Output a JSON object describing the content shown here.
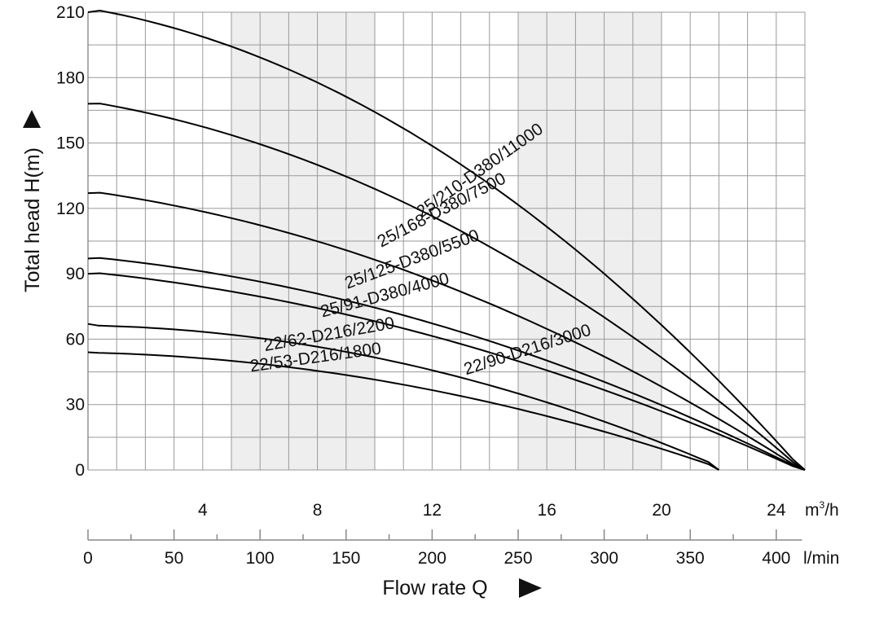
{
  "chart_data": {
    "type": "line",
    "title": "",
    "ylabel": "Total head H(m)",
    "xlabel": "Flow rate Q",
    "x_unit_primary": "m³/h",
    "x_unit_primary_base": "m",
    "x_unit_primary_sup": "3",
    "x_unit_primary_tail": "/h",
    "x_unit_secondary": "l/min",
    "xlim": [
      0,
      25
    ],
    "ylim": [
      0,
      210
    ],
    "yticks": [
      0,
      30,
      60,
      90,
      120,
      150,
      180,
      210
    ],
    "xticks_m3h": [
      4,
      8,
      12,
      16,
      20,
      24
    ],
    "xticks_lmin": [
      0,
      50,
      100,
      150,
      200,
      250,
      300,
      350,
      400
    ],
    "shaded_ranges": [
      [
        5,
        10
      ],
      [
        15,
        20
      ]
    ],
    "series": [
      {
        "name": "25/210-D380/11000",
        "x": [
          0,
          5,
          10,
          15,
          20,
          25
        ],
        "values": [
          210,
          197,
          165,
          120,
          65,
          0
        ]
      },
      {
        "name": "25/168-D380/7500",
        "x": [
          0,
          5,
          10,
          15,
          20,
          25
        ],
        "values": [
          168,
          155,
          130,
          94,
          50,
          0
        ]
      },
      {
        "name": "25/125-D380/5500",
        "x": [
          0,
          5,
          10,
          15,
          20,
          25
        ],
        "values": [
          127,
          117,
          97,
          70,
          37,
          0
        ]
      },
      {
        "name": "25/91-D380/4000",
        "x": [
          0,
          5,
          10,
          15,
          20,
          25
        ],
        "values": [
          97,
          90,
          75,
          54,
          29,
          0
        ]
      },
      {
        "name": "22/90-D216/3000",
        "x": [
          0,
          5,
          10,
          15,
          20,
          25
        ],
        "values": [
          90,
          83,
          69,
          49,
          26,
          0
        ]
      },
      {
        "name": "22/62-D216/2200",
        "x": [
          0,
          5,
          10,
          15,
          20,
          22
        ],
        "values": [
          67,
          61,
          51,
          36,
          14,
          0
        ]
      },
      {
        "name": "22/53-D216/1800",
        "x": [
          0,
          5,
          10,
          15,
          20,
          22
        ],
        "values": [
          54,
          50,
          41,
          28,
          11,
          0
        ]
      }
    ]
  }
}
